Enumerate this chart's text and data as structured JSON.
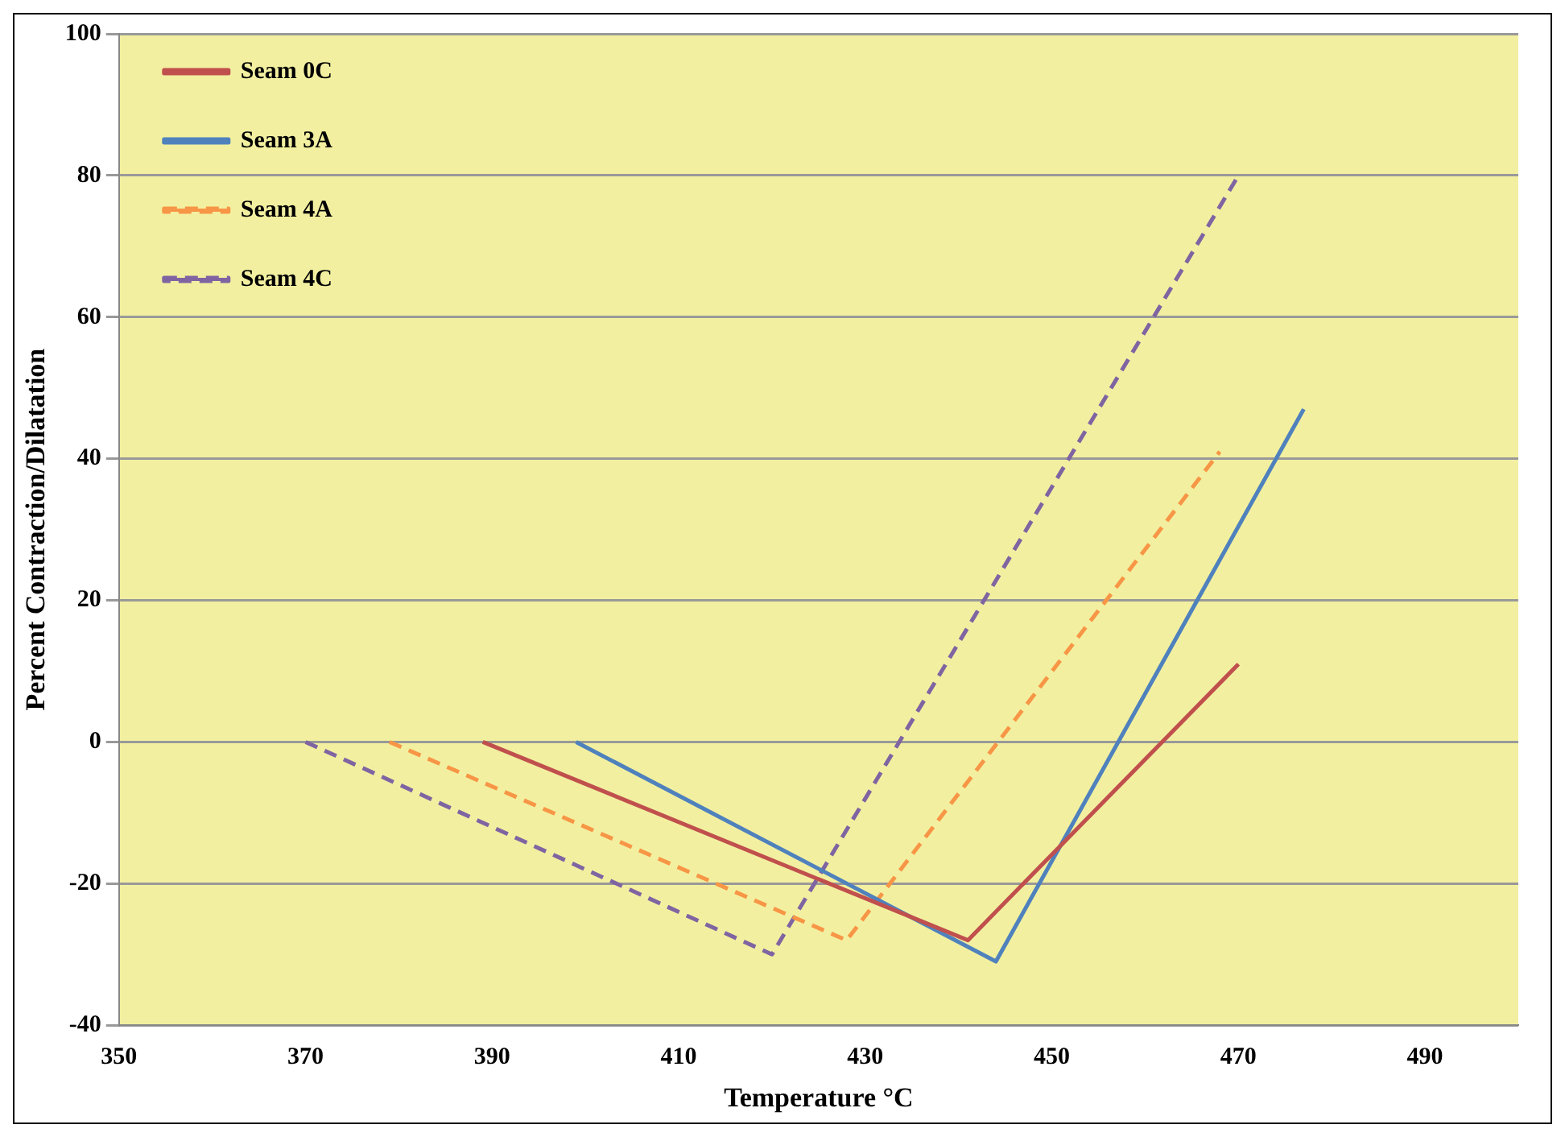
{
  "chart_data": {
    "type": "line",
    "xlabel": "Temperature °C",
    "ylabel": "Percent Contraction/Dilatation",
    "xlim": [
      350,
      500
    ],
    "xticks": [
      350,
      370,
      390,
      410,
      430,
      450,
      470,
      490
    ],
    "ylim": [
      -40,
      100
    ],
    "yticks": [
      -40,
      -20,
      0,
      20,
      40,
      60,
      80,
      100
    ],
    "grid": "y",
    "legend": "top left",
    "marker": "none",
    "series": [
      {
        "name": "Seam 0C",
        "color": "#c0504d",
        "line_style": "solid",
        "x": [
          389,
          441,
          470
        ],
        "values": [
          0,
          -28,
          11
        ]
      },
      {
        "name": "Seam 3A",
        "color": "#4f81bd",
        "line_style": "solid",
        "x": [
          399,
          444,
          477
        ],
        "values": [
          0,
          -31,
          47
        ]
      },
      {
        "name": "Seam 4A",
        "color": "#f79646",
        "line_style": "dashed",
        "x": [
          379,
          428,
          468
        ],
        "values": [
          0,
          -28,
          41
        ]
      },
      {
        "name": "Seam 4C",
        "color": "#8064a2",
        "line_style": "dashed",
        "x": [
          370,
          420,
          470
        ],
        "values": [
          0,
          -30,
          80
        ]
      }
    ]
  }
}
